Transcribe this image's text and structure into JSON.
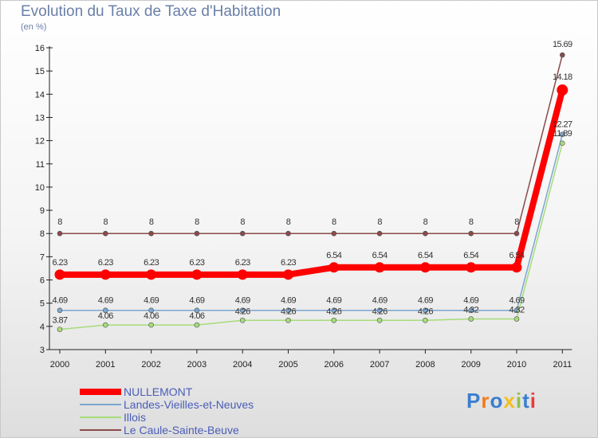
{
  "chart_data": {
    "type": "line",
    "title": "Evolution du Taux de Taxe d'Habitation",
    "unit_label": "(en %)",
    "xlabel": "",
    "ylabel": "",
    "categories": [
      "2000",
      "2001",
      "2002",
      "2003",
      "2004",
      "2005",
      "2006",
      "2007",
      "2008",
      "2009",
      "2010",
      "2011"
    ],
    "ylim": [
      3,
      16
    ],
    "yticks": [
      3,
      4,
      5,
      6,
      7,
      8,
      9,
      10,
      11,
      12,
      13,
      14,
      15,
      16
    ],
    "grid": false,
    "legend_position": "bottom-left",
    "series": [
      {
        "name": "NULLEMONT",
        "color": "#ff0000",
        "values": [
          6.23,
          6.23,
          6.23,
          6.23,
          6.23,
          6.23,
          6.54,
          6.54,
          6.54,
          6.54,
          6.54,
          14.18
        ],
        "labels": [
          "6.23",
          "6.23",
          "6.23",
          "6.23",
          "6.23",
          "6.23",
          "6.54",
          "6.54",
          "6.54",
          "6.54",
          "6.54",
          "14.18"
        ]
      },
      {
        "name": "Landes-Vieilles-et-Neuves",
        "color": "#7ba6cf",
        "values": [
          4.69,
          4.69,
          4.69,
          4.69,
          4.69,
          4.69,
          4.69,
          4.69,
          4.69,
          4.69,
          4.69,
          12.27
        ],
        "labels": [
          "4.69",
          "4.69",
          "4.69",
          "4.69",
          "4.69",
          "4.69",
          "4.69",
          "4.69",
          "4.69",
          "4.69",
          "4.69",
          "12.27"
        ]
      },
      {
        "name": "Illois",
        "color": "#a6dc7a",
        "values": [
          3.87,
          4.06,
          4.06,
          4.06,
          4.26,
          4.26,
          4.26,
          4.26,
          4.26,
          4.32,
          4.32,
          11.89
        ],
        "labels": [
          "3.87",
          "4.06",
          "4.06",
          "4.06",
          "4.26",
          "4.26",
          "4.26",
          "4.26",
          "4.26",
          "4.32",
          "4.32",
          "11.89"
        ]
      },
      {
        "name": "Le Caule-Sainte-Beuve",
        "color": "#8b4a4a",
        "values": [
          8,
          8,
          8,
          8,
          8,
          8,
          8,
          8,
          8,
          8,
          8,
          15.69
        ],
        "labels": [
          "8",
          "8",
          "8",
          "8",
          "8",
          "8",
          "8",
          "8",
          "8",
          "8",
          "8",
          "15.69"
        ]
      }
    ]
  },
  "logo": {
    "letters": [
      "P",
      "r",
      "o",
      "x",
      "i",
      "t",
      "i"
    ],
    "colors": [
      "#3a7ecf",
      "#f07a1e",
      "#3a7ecf",
      "#f0c020",
      "#8bc34a",
      "#3a7ecf",
      "#e83c3c"
    ]
  }
}
